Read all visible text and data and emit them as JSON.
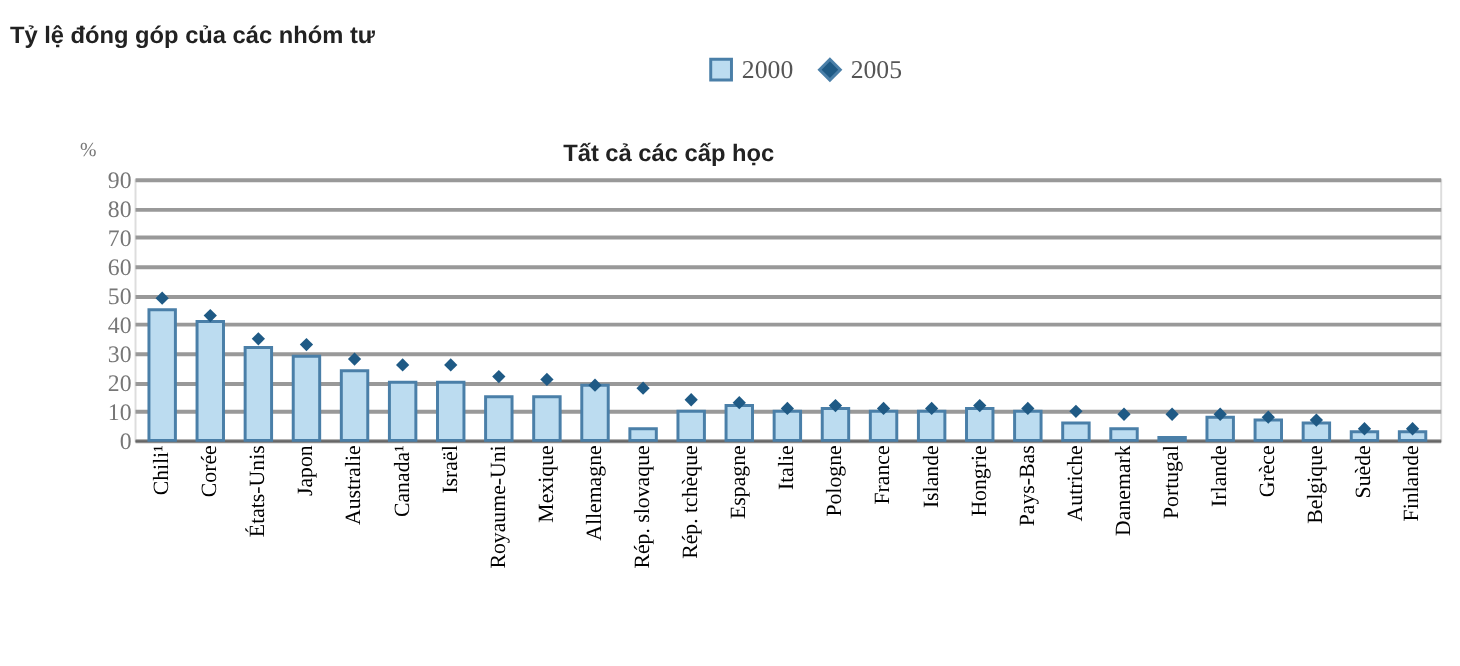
{
  "chart_data": {
    "type": "bar",
    "title": "Tỷ lệ đóng góp của các nhóm tư",
    "subtitle": "Tất cả các cấp học",
    "ylabel": "%",
    "categories": [
      "Chili¹",
      "Corée",
      "États-Unis",
      "Japon",
      "Australie",
      "Canada¹",
      "Israël",
      "Royaume-Uni",
      "Mexique",
      "Allemagne",
      "Rép. slovaque",
      "Rép. tchèque",
      "Espagne",
      "Italie",
      "Pologne",
      "France",
      "Islande",
      "Hongrie",
      "Pays-Bas",
      "Autriche",
      "Danemark",
      "Portugal",
      "Irlande",
      "Grèce",
      "Belgique",
      "Suède",
      "Finlande"
    ],
    "series": [
      {
        "name": "2000",
        "color": "#bcdcf0",
        "values": [
          45,
          41,
          32,
          29,
          24,
          20,
          20,
          15,
          15,
          19,
          4,
          10,
          12,
          10,
          11,
          10,
          10,
          11,
          10,
          6,
          4,
          1,
          8,
          7,
          6,
          3,
          3
        ]
      },
      {
        "name": "2005",
        "type": "scatter",
        "color": "#1f5a85",
        "marker": "diamond",
        "values": [
          49,
          43,
          35,
          33,
          28,
          26,
          26,
          22,
          21,
          19,
          18,
          14,
          13,
          11,
          12,
          11,
          11,
          12,
          11,
          10,
          9,
          9,
          9,
          8,
          7,
          4,
          4
        ]
      }
    ],
    "ylim": [
      0,
      90
    ],
    "yticks": [
      0,
      10,
      20,
      30,
      40,
      50,
      60,
      70,
      80,
      90
    ],
    "grid": "y",
    "legend": "top"
  }
}
